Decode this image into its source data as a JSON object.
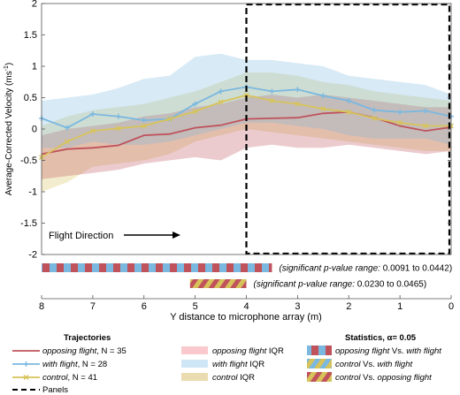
{
  "chart_data": {
    "type": "line",
    "xlabel": "Y distance to microphone array (m)",
    "ylabel": "Average-Corrected Velocity (ms",
    "ylabel_sup": "-1",
    "ylabel_close": ")",
    "xlim": [
      8,
      0
    ],
    "ylim": [
      -2,
      2
    ],
    "x_reversed": true,
    "xticks": [
      8,
      7,
      6,
      5,
      4,
      3,
      2,
      1,
      0
    ],
    "yticks": [
      2,
      1.5,
      1,
      0.5,
      0,
      -0.5,
      -1,
      -1.5,
      -2
    ],
    "grid": false,
    "panels_box": {
      "x_from": 4,
      "x_to": 0,
      "y_from": -2,
      "y_to": 2
    },
    "annotation": "Flight Direction",
    "x": [
      8,
      7.5,
      7,
      6.5,
      6,
      5.5,
      5,
      4.5,
      4,
      3.5,
      3,
      2.5,
      2,
      1.5,
      1,
      0.5,
      0
    ],
    "series": [
      {
        "name": "opposing flight, N = 35",
        "color": "#c0525c",
        "marker": "none",
        "values": [
          -0.4,
          -0.32,
          -0.3,
          -0.26,
          -0.1,
          -0.08,
          0.02,
          0.06,
          0.16,
          0.17,
          0.18,
          0.25,
          0.27,
          0.18,
          0.05,
          -0.03,
          0.03
        ],
        "iqr_low": [
          -0.8,
          -0.75,
          -0.7,
          -0.65,
          -0.55,
          -0.5,
          -0.45,
          -0.5,
          -0.3,
          -0.25,
          -0.3,
          -0.3,
          -0.25,
          -0.3,
          -0.35,
          -0.4,
          -0.35
        ],
        "iqr_high": [
          -0.1,
          0.0,
          0.05,
          0.1,
          0.2,
          0.25,
          0.35,
          0.4,
          0.5,
          0.55,
          0.5,
          0.55,
          0.5,
          0.45,
          0.4,
          0.35,
          0.35
        ]
      },
      {
        "name": "with flight, N = 28",
        "color": "#7ab8e0",
        "marker": "plus",
        "values": [
          0.17,
          0.02,
          0.24,
          0.2,
          0.14,
          0.16,
          0.4,
          0.6,
          0.67,
          0.6,
          0.63,
          0.53,
          0.45,
          0.3,
          0.27,
          0.29,
          0.2
        ],
        "iqr_low": [
          -0.3,
          -0.3,
          -0.2,
          -0.25,
          -0.25,
          -0.2,
          -0.1,
          0.0,
          0.1,
          0.1,
          0.05,
          0.0,
          -0.1,
          -0.15,
          -0.15,
          -0.15,
          -0.25
        ],
        "iqr_high": [
          0.45,
          0.5,
          0.55,
          0.65,
          0.8,
          0.85,
          1.15,
          1.2,
          1.1,
          1.1,
          1.05,
          1.0,
          0.85,
          0.8,
          0.75,
          0.7,
          0.55
        ]
      },
      {
        "name": "control, N = 41",
        "color": "#d7c35a",
        "marker": "x",
        "values": [
          -0.45,
          -0.2,
          -0.03,
          0.01,
          0.05,
          0.16,
          0.28,
          0.43,
          0.54,
          0.45,
          0.4,
          0.32,
          0.27,
          0.17,
          0.1,
          0.05,
          0.05
        ],
        "iqr_low": [
          -1.0,
          -0.85,
          -0.6,
          -0.55,
          -0.5,
          -0.4,
          -0.2,
          -0.1,
          0.0,
          -0.05,
          -0.1,
          -0.15,
          -0.2,
          -0.25,
          -0.3,
          -0.35,
          -0.35
        ],
        "iqr_high": [
          0.05,
          0.2,
          0.3,
          0.35,
          0.4,
          0.5,
          0.6,
          0.75,
          0.9,
          0.9,
          0.85,
          0.75,
          0.7,
          0.6,
          0.55,
          0.5,
          0.45
        ]
      }
    ],
    "significance_bars": [
      {
        "x_from": 8,
        "x_to": 3.5,
        "colors": [
          "#c0525c",
          "#7ab8e0"
        ],
        "pattern": "blocks",
        "note_prefix": "(significant p-value range: ",
        "note_values": "0.0091 to 0.0442",
        "note_suffix": ")"
      },
      {
        "x_from": 5.1,
        "x_to": 4.0,
        "colors": [
          "#c0525c",
          "#d7c35a"
        ],
        "pattern": "stripes",
        "note_prefix": "(significant p-value range: ",
        "note_values": "0.0230 to 0.0465",
        "note_suffix": ")"
      }
    ]
  },
  "legend": {
    "trajectories_title": "Trajectories",
    "series_lines": [
      {
        "label": "opposing flight",
        "suffix": ", N = 35",
        "color": "#c0525c",
        "marker": "none"
      },
      {
        "label": "with flight",
        "suffix": ", N = 28",
        "color": "#7ab8e0",
        "marker": "plus"
      },
      {
        "label": "control",
        "suffix": ", N = 41",
        "color": "#d7c35a",
        "marker": "x"
      }
    ],
    "panels_label": "Panels",
    "iqr_entries": [
      {
        "label": "opposing flight",
        "suffix": " IQR",
        "color": "#f9c9cd"
      },
      {
        "label": "with flight",
        "suffix": " IQR",
        "color": "#cfe6f6"
      },
      {
        "label": "control",
        "suffix": " IQR",
        "color": "#eadcb0"
      }
    ],
    "statistics_title": "Statistics, α= 0.05",
    "stats_entries": [
      {
        "a": "opposing flight",
        "mid": " Vs. ",
        "b": "with flight",
        "colors": [
          "#c0525c",
          "#7ab8e0"
        ],
        "pattern": "blocks"
      },
      {
        "a": "control",
        "mid": " Vs. ",
        "b": "with flight",
        "colors": [
          "#d7c35a",
          "#7ab8e0"
        ],
        "pattern": "stripes"
      },
      {
        "a": "control",
        "mid": " Vs. ",
        "b": "opposing flight",
        "colors": [
          "#d7c35a",
          "#c0525c"
        ],
        "pattern": "stripes"
      }
    ]
  }
}
